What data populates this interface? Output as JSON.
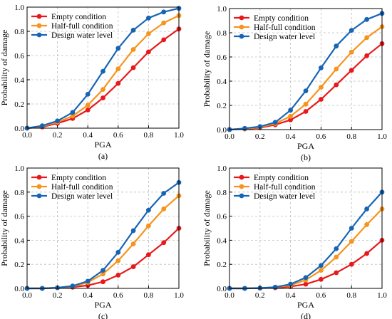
{
  "chart_data": [
    {
      "type": "line",
      "panel_label": "(a)",
      "xlabel": "PGA",
      "ylabel": "Probability of damage",
      "xlim": [
        0,
        1.0
      ],
      "ylim": [
        0,
        1.0
      ],
      "xticks": [
        "0.0",
        "0.2",
        "0.4",
        "0.6",
        "0.8",
        "1.0"
      ],
      "yticks": [
        "0.0",
        "0.2",
        "0.4",
        "0.6",
        "0.8",
        "1.0"
      ],
      "grid": true,
      "legend_position": "top-left",
      "x": [
        0.0,
        0.1,
        0.2,
        0.3,
        0.4,
        0.5,
        0.6,
        0.7,
        0.8,
        0.9,
        1.0
      ],
      "series": [
        {
          "name": "Empty condition",
          "color": "#e8191b",
          "values": [
            0.0,
            0.01,
            0.04,
            0.08,
            0.15,
            0.25,
            0.37,
            0.5,
            0.63,
            0.73,
            0.82
          ]
        },
        {
          "name": "Half-full condition",
          "color": "#f7941d",
          "values": [
            0.0,
            0.015,
            0.05,
            0.1,
            0.19,
            0.32,
            0.49,
            0.65,
            0.78,
            0.87,
            0.93
          ]
        },
        {
          "name": "Design water level",
          "color": "#1665b5",
          "values": [
            0.0,
            0.02,
            0.06,
            0.13,
            0.28,
            0.47,
            0.66,
            0.81,
            0.91,
            0.96,
            0.99
          ]
        }
      ]
    },
    {
      "type": "line",
      "panel_label": "(b)",
      "xlabel": "PGA",
      "ylabel": "Probability of damage",
      "xlim": [
        0,
        1.0
      ],
      "ylim": [
        0,
        1.0
      ],
      "xticks": [
        "0.0",
        "0.2",
        "0.4",
        "0.6",
        "0.8",
        "1.0"
      ],
      "yticks": [
        "0.0",
        "0.2",
        "0.4",
        "0.6",
        "0.8",
        "1.0"
      ],
      "grid": true,
      "legend_position": "top-left",
      "x": [
        0.0,
        0.1,
        0.2,
        0.3,
        0.4,
        0.5,
        0.6,
        0.7,
        0.8,
        0.9,
        1.0
      ],
      "series": [
        {
          "name": "Empty condition",
          "color": "#e8191b",
          "values": [
            0.0,
            0.005,
            0.015,
            0.04,
            0.08,
            0.15,
            0.25,
            0.37,
            0.49,
            0.61,
            0.71
          ]
        },
        {
          "name": "Half-full condition",
          "color": "#f7941d",
          "values": [
            0.0,
            0.007,
            0.02,
            0.05,
            0.11,
            0.21,
            0.35,
            0.5,
            0.64,
            0.76,
            0.85
          ]
        },
        {
          "name": "Design water level",
          "color": "#1665b5",
          "values": [
            0.0,
            0.01,
            0.025,
            0.06,
            0.16,
            0.32,
            0.51,
            0.69,
            0.82,
            0.91,
            0.96
          ]
        }
      ]
    },
    {
      "type": "line",
      "panel_label": "(c)",
      "xlabel": "PGA",
      "ylabel": "Probability of damage",
      "xlim": [
        0,
        1.0
      ],
      "ylim": [
        0,
        1.0
      ],
      "xticks": [
        "0.0",
        "0.2",
        "0.4",
        "0.6",
        "0.8",
        "1.0"
      ],
      "yticks": [
        "0.0",
        "0.2",
        "0.4",
        "0.6",
        "0.8",
        "1.0"
      ],
      "grid": true,
      "legend_position": "top-left",
      "x": [
        0.0,
        0.1,
        0.2,
        0.3,
        0.4,
        0.5,
        0.6,
        0.7,
        0.8,
        0.9,
        1.0
      ],
      "series": [
        {
          "name": "Empty condition",
          "color": "#e8191b",
          "values": [
            0.0,
            0.0,
            0.005,
            0.01,
            0.025,
            0.055,
            0.11,
            0.18,
            0.28,
            0.38,
            0.5
          ]
        },
        {
          "name": "Half-full condition",
          "color": "#f7941d",
          "values": [
            0.0,
            0.0,
            0.005,
            0.015,
            0.05,
            0.12,
            0.23,
            0.37,
            0.52,
            0.66,
            0.77
          ]
        },
        {
          "name": "Design water level",
          "color": "#1665b5",
          "values": [
            0.0,
            0.0,
            0.005,
            0.02,
            0.06,
            0.15,
            0.3,
            0.48,
            0.65,
            0.79,
            0.88
          ]
        }
      ]
    },
    {
      "type": "line",
      "panel_label": "(d)",
      "xlabel": "PGA",
      "ylabel": "Probability of damage",
      "xlim": [
        0,
        1.0
      ],
      "ylim": [
        0,
        1.0
      ],
      "xticks": [
        "0.0",
        "0.2",
        "0.4",
        "0.6",
        "0.8",
        "1.0"
      ],
      "yticks": [
        "0.0",
        "0.2",
        "0.4",
        "0.6",
        "0.8",
        "1.0"
      ],
      "grid": true,
      "legend_position": "top-left",
      "x": [
        0.0,
        0.1,
        0.2,
        0.3,
        0.4,
        0.5,
        0.6,
        0.7,
        0.8,
        0.9,
        1.0
      ],
      "series": [
        {
          "name": "Empty condition",
          "color": "#e8191b",
          "values": [
            0.0,
            0.0,
            0.002,
            0.005,
            0.015,
            0.035,
            0.075,
            0.13,
            0.2,
            0.29,
            0.4
          ]
        },
        {
          "name": "Half-full condition",
          "color": "#f7941d",
          "values": [
            0.0,
            0.0,
            0.003,
            0.01,
            0.025,
            0.07,
            0.15,
            0.26,
            0.39,
            0.53,
            0.66
          ]
        },
        {
          "name": "Design water level",
          "color": "#1665b5",
          "values": [
            0.0,
            0.0,
            0.003,
            0.01,
            0.035,
            0.09,
            0.19,
            0.33,
            0.5,
            0.66,
            0.8
          ]
        }
      ]
    }
  ]
}
